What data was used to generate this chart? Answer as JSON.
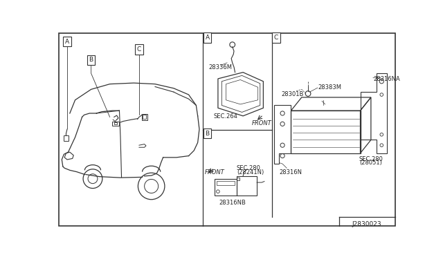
{
  "diagram_id": "J2830023",
  "bg_color": "#f5f5f5",
  "border_color": "#333333",
  "line_color": "#333333",
  "text_color": "#222222",
  "parts": {
    "panel_A": {
      "part1_label": "28336M",
      "sec_label": "SEC.264",
      "front_label": "FRONT"
    },
    "panel_B": {
      "part1_label": "28316NB",
      "sec_label": "SEC.280",
      "sec_sub": "(28241N)",
      "front_label": "FRONT"
    },
    "panel_C": {
      "part1_label": "28383M",
      "part2_label": "28301B",
      "part3_label": "28316NA",
      "part4_label": "28316N",
      "sec_label": "SEC.280",
      "sec_sub": "(28051)"
    }
  }
}
